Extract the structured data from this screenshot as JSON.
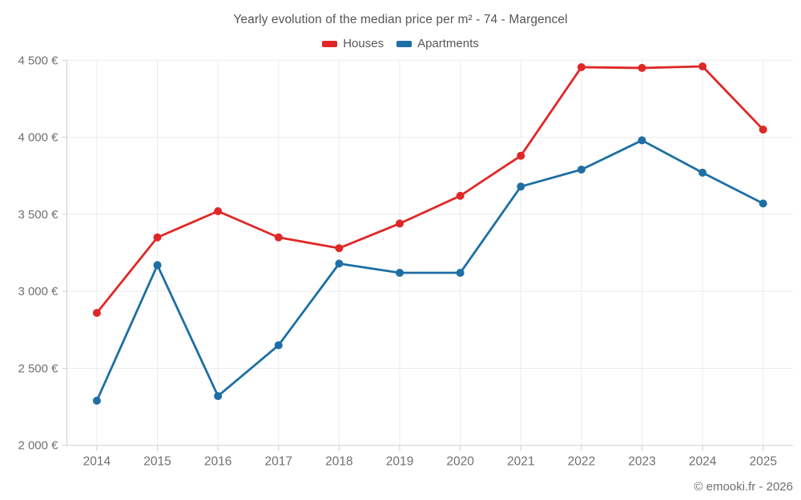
{
  "header": {
    "title": "Yearly evolution of the median price per m² - 74 - Margencel"
  },
  "legend": {
    "items": [
      {
        "label": "Houses",
        "color": "#e02727"
      },
      {
        "label": "Apartments",
        "color": "#1d6fa5"
      }
    ]
  },
  "footer": {
    "credit": "© emooki.fr - 2026"
  },
  "colors": {
    "houses": "#e02727",
    "apartments": "#1d6fa5",
    "gridline": "#ececec",
    "axis": "#d0d0d0",
    "tick_label": "#6f7072",
    "title_text": "#55565a",
    "background": "#ffffff"
  },
  "chart_data": {
    "type": "line",
    "title": "Yearly evolution of the median price per m² - 74 - Margencel",
    "categories": [
      "2014",
      "2015",
      "2016",
      "2017",
      "2018",
      "2019",
      "2020",
      "2021",
      "2022",
      "2023",
      "2024",
      "2025"
    ],
    "series": [
      {
        "name": "Houses",
        "color": "#e02727",
        "values": [
          2860,
          3350,
          3520,
          3350,
          3280,
          3440,
          3620,
          3880,
          4455,
          4450,
          4460,
          4050
        ]
      },
      {
        "name": "Apartments",
        "color": "#1d6fa5",
        "values": [
          2290,
          3170,
          2320,
          2650,
          3180,
          3120,
          3120,
          3680,
          3790,
          3980,
          3770,
          3570
        ]
      }
    ],
    "xlabel": "",
    "ylabel": "",
    "ylim": [
      2000,
      4500
    ],
    "y_ticks": [
      {
        "value": 2000,
        "label": "2 000 €"
      },
      {
        "value": 2500,
        "label": "2 500 €"
      },
      {
        "value": 3000,
        "label": "3 000 €"
      },
      {
        "value": 3500,
        "label": "3 500 €"
      },
      {
        "value": 4000,
        "label": "4 000 €"
      },
      {
        "value": 4500,
        "label": "4 500 €"
      }
    ],
    "grid": true,
    "legend_position": "top"
  }
}
